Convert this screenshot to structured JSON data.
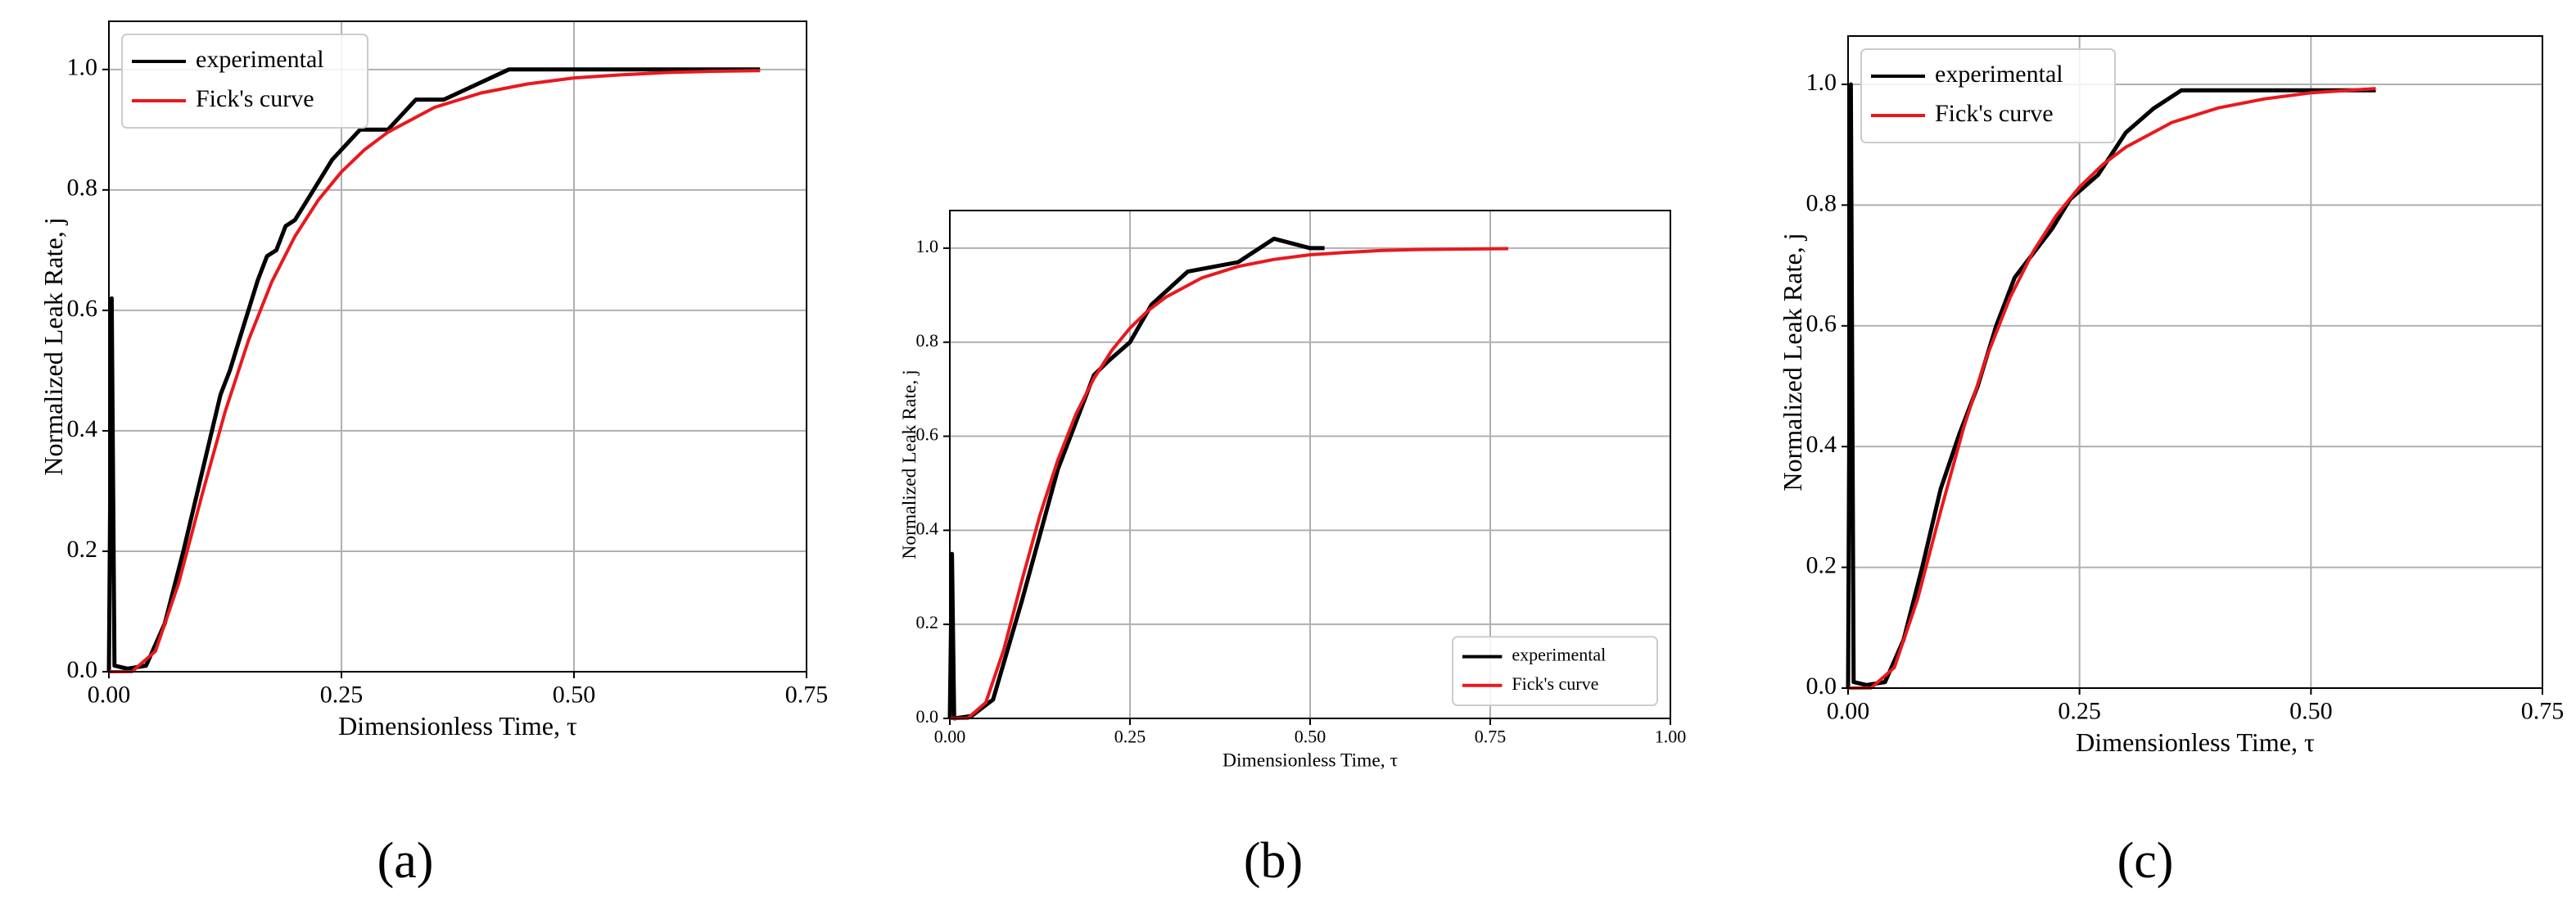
{
  "chart_data": [
    {
      "type": "line",
      "panel_label": "(a)",
      "x_label": "Dimensionless Time, τ",
      "y_label": "Normalized Leak Rate, j",
      "xlim": [
        0,
        0.75
      ],
      "ylim": [
        0,
        1.08
      ],
      "xticks": [
        {
          "value": 0,
          "label": "0.00"
        },
        0.25,
        {
          "value": 0.5,
          "label": "0.50"
        },
        0.75
      ],
      "yticks": [
        {
          "value": 0,
          "label": "0.0"
        },
        0.2,
        0.4,
        0.6,
        0.8,
        {
          "value": 1,
          "label": "1.0"
        }
      ],
      "grid": true,
      "legend": "upper-left",
      "series": [
        {
          "name": "experimental",
          "color": "#000000",
          "x": [
            0,
            0.003,
            0.006,
            0.02,
            0.04,
            0.06,
            0.08,
            0.1,
            0.12,
            0.13,
            0.14,
            0.15,
            0.16,
            0.17,
            0.18,
            0.19,
            0.2,
            0.22,
            0.24,
            0.27,
            0.3,
            0.33,
            0.36,
            0.43,
            0.5,
            0.6,
            0.7
          ],
          "values": [
            0,
            0.62,
            0.01,
            0.005,
            0.01,
            0.08,
            0.2,
            0.33,
            0.46,
            0.5,
            0.55,
            0.6,
            0.65,
            0.69,
            0.7,
            0.74,
            0.75,
            0.8,
            0.85,
            0.9,
            0.9,
            0.95,
            0.95,
            1.0,
            1.0,
            1.0,
            1.0
          ]
        },
        {
          "name": "Fick's curve",
          "color": "#e8191e",
          "x": [
            0,
            0.025,
            0.05,
            0.075,
            0.1,
            0.125,
            0.15,
            0.175,
            0.2,
            0.225,
            0.25,
            0.275,
            0.3,
            0.35,
            0.4,
            0.45,
            0.5,
            0.55,
            0.6,
            0.65,
            0.7
          ],
          "values": [
            0,
            0.0003,
            0.034,
            0.147,
            0.293,
            0.432,
            0.55,
            0.647,
            0.723,
            0.783,
            0.83,
            0.867,
            0.896,
            0.937,
            0.961,
            0.976,
            0.986,
            0.991,
            0.995,
            0.997,
            0.998
          ]
        }
      ]
    },
    {
      "type": "line",
      "panel_label": "(b)",
      "x_label": "Dimensionless Time, τ",
      "y_label": "Normalized Leak Rate, j",
      "xlim": [
        0,
        1.0
      ],
      "ylim": [
        0,
        1.08
      ],
      "xticks": [
        {
          "value": 0,
          "label": "0.00"
        },
        0.25,
        {
          "value": 0.5,
          "label": "0.50"
        },
        0.75,
        {
          "value": 1,
          "label": "1.00"
        }
      ],
      "yticks": [
        {
          "value": 0,
          "label": "0.0"
        },
        0.2,
        0.4,
        0.6,
        0.8,
        {
          "value": 1,
          "label": "1.0"
        }
      ],
      "grid": true,
      "legend": "lower-right",
      "series": [
        {
          "name": "experimental",
          "color": "#000000",
          "x": [
            0,
            0.003,
            0.006,
            0.03,
            0.06,
            0.1,
            0.15,
            0.2,
            0.22,
            0.25,
            0.28,
            0.33,
            0.4,
            0.45,
            0.5,
            0.52
          ],
          "values": [
            0,
            0.35,
            0,
            0.005,
            0.04,
            0.25,
            0.53,
            0.73,
            0.76,
            0.8,
            0.88,
            0.95,
            0.97,
            1.02,
            1.0,
            1.0
          ]
        },
        {
          "name": "Fick's curve",
          "color": "#e8191e",
          "x": [
            0,
            0.025,
            0.05,
            0.075,
            0.1,
            0.125,
            0.15,
            0.175,
            0.2,
            0.225,
            0.25,
            0.275,
            0.3,
            0.35,
            0.4,
            0.45,
            0.5,
            0.55,
            0.6,
            0.65,
            0.7,
            0.775
          ],
          "values": [
            0,
            0.0003,
            0.034,
            0.147,
            0.293,
            0.432,
            0.55,
            0.647,
            0.723,
            0.783,
            0.83,
            0.867,
            0.896,
            0.937,
            0.961,
            0.976,
            0.986,
            0.991,
            0.995,
            0.997,
            0.998,
            0.999
          ]
        }
      ]
    },
    {
      "type": "line",
      "panel_label": "(c)",
      "x_label": "Dimensionless Time, τ",
      "y_label": "Normalized Leak Rate, j",
      "xlim": [
        0,
        0.75
      ],
      "ylim": [
        0,
        1.08
      ],
      "xticks": [
        {
          "value": 0,
          "label": "0.00"
        },
        0.25,
        {
          "value": 0.5,
          "label": "0.50"
        },
        0.75
      ],
      "yticks": [
        {
          "value": 0,
          "label": "0.0"
        },
        0.2,
        0.4,
        0.6,
        0.8,
        {
          "value": 1,
          "label": "1.0"
        }
      ],
      "grid": true,
      "legend": "upper-left",
      "series": [
        {
          "name": "experimental",
          "color": "#000000",
          "x": [
            0,
            0.003,
            0.006,
            0.02,
            0.04,
            0.06,
            0.08,
            0.1,
            0.12,
            0.13,
            0.14,
            0.15,
            0.16,
            0.18,
            0.2,
            0.22,
            0.24,
            0.27,
            0.3,
            0.33,
            0.36,
            0.45,
            0.57
          ],
          "values": [
            0,
            1.0,
            0.01,
            0.005,
            0.01,
            0.08,
            0.2,
            0.33,
            0.42,
            0.46,
            0.5,
            0.55,
            0.6,
            0.68,
            0.72,
            0.76,
            0.81,
            0.85,
            0.92,
            0.96,
            0.99,
            0.99,
            0.99
          ]
        },
        {
          "name": "Fick's curve",
          "color": "#e8191e",
          "x": [
            0,
            0.025,
            0.05,
            0.075,
            0.1,
            0.125,
            0.15,
            0.175,
            0.2,
            0.225,
            0.25,
            0.275,
            0.3,
            0.35,
            0.4,
            0.45,
            0.5,
            0.57
          ],
          "values": [
            0,
            0.0003,
            0.034,
            0.147,
            0.293,
            0.432,
            0.55,
            0.647,
            0.723,
            0.783,
            0.83,
            0.867,
            0.896,
            0.937,
            0.961,
            0.976,
            0.986,
            0.993
          ]
        }
      ]
    }
  ]
}
